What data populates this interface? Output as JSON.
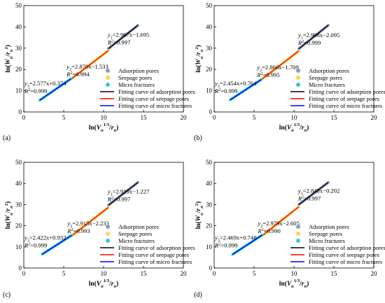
{
  "chart_data": [
    {
      "panel_label": "(a)",
      "type": "scatter",
      "xlabel": "ln(V_n^1/3/r_n)",
      "ylabel": "ln(W_n/r_n^2)",
      "xlim": [
        0,
        20
      ],
      "ylim": [
        0,
        50
      ],
      "xticks": [
        "0",
        "5",
        "10",
        "15",
        "20"
      ],
      "yticks": [
        "0",
        "10",
        "20",
        "30",
        "40",
        "50"
      ],
      "legend_position": "bottom-right",
      "legend": [
        "Adsorption pores",
        "Seepage pores",
        "Micro fractures",
        "Fitting curve of adsorption pores",
        "Fitting curve of seepage pores",
        "Fitting curve of micro fractures"
      ],
      "series": [
        {
          "kind": "adsorption",
          "x_range": [
            10.6,
            14.3
          ],
          "slope": 2.967,
          "intercept": -1.695,
          "eq": "y1=2.967x−1.695",
          "r2": "R²=0.997"
        },
        {
          "kind": "seepage",
          "x_range": [
            5.9,
            10.6
          ],
          "slope": 2.87,
          "intercept": -1.533,
          "eq": "y2=2.870x−1.533",
          "r2": "R²=0.994"
        },
        {
          "kind": "micro",
          "x_range": [
            2.0,
            5.9
          ],
          "slope": 2.577,
          "intercept": 0.374,
          "eq": "y3=2.577x+0.374",
          "r2": "R²=0.999"
        }
      ]
    },
    {
      "panel_label": "(b)",
      "type": "scatter",
      "xlabel": "ln(V_n^1/3/r_n)",
      "ylabel": "ln(W_n/r_n^2)",
      "xlim": [
        0,
        20
      ],
      "ylim": [
        0,
        50
      ],
      "xticks": [
        "0",
        "5",
        "10",
        "15",
        "20"
      ],
      "yticks": [
        "0",
        "10",
        "20",
        "30",
        "40",
        "50"
      ],
      "legend_position": "bottom-right",
      "legend": [
        "Adsorption pores",
        "Seepage pores",
        "Micro fractures",
        "Fitting curve of adsorption pores",
        "Fitting curve of seepage pores",
        "Fitting curve of micro fractures"
      ],
      "series": [
        {
          "kind": "adsorption",
          "x_range": [
            10.6,
            14.3
          ],
          "slope": 2.998,
          "intercept": -2.095,
          "eq": "y1=2.998x−2.095",
          "r2": "R²=0.999"
        },
        {
          "kind": "seepage",
          "x_range": [
            5.9,
            10.6
          ],
          "slope": 2.866,
          "intercept": -1.709,
          "eq": "y2=2.866x−1.709",
          "r2": "R²=0.995"
        },
        {
          "kind": "micro",
          "x_range": [
            2.0,
            5.9
          ],
          "slope": 2.454,
          "intercept": 0.764,
          "eq": "y3=2.454x+0.764",
          "r2": "R²=0.999"
        }
      ]
    },
    {
      "panel_label": "(c)",
      "type": "scatter",
      "xlabel": "ln(V_n^1/3/r_n)",
      "ylabel": "ln(W_n/r_n^2)",
      "xlim": [
        0,
        20
      ],
      "ylim": [
        0,
        50
      ],
      "xticks": [
        "0",
        "5",
        "10",
        "15",
        "20"
      ],
      "yticks": [
        "0",
        "10",
        "20",
        "30",
        "40",
        "50"
      ],
      "legend_position": "bottom-right",
      "legend": [
        "Adsorption pores",
        "Seepage pores",
        "Micro fractures",
        "Fitting curve of adsorption pores",
        "Fitting curve of seepage pores",
        "Fitting curve of micro fractures"
      ],
      "series": [
        {
          "kind": "adsorption",
          "x_range": [
            10.6,
            14.3
          ],
          "slope": 2.919,
          "intercept": -1.227,
          "eq": "y1=2.919x−1.227",
          "r2": "R²=0.997"
        },
        {
          "kind": "seepage",
          "x_range": [
            6.0,
            10.6
          ],
          "slope": 2.915,
          "intercept": -2.233,
          "eq": "y2=2.915x−2.233",
          "r2": "R²=0.993"
        },
        {
          "kind": "micro",
          "x_range": [
            2.3,
            6.0
          ],
          "slope": 2.422,
          "intercept": 0.932,
          "eq": "y3=2.422x+0.932",
          "r2": "R²=0.999"
        }
      ]
    },
    {
      "panel_label": "(d)",
      "type": "scatter",
      "xlabel": "ln(V_n^1/3/r_n)",
      "ylabel": "ln(W_n/r_n^2)",
      "xlim": [
        0,
        20
      ],
      "ylim": [
        0,
        50
      ],
      "xticks": [
        "0",
        "5",
        "10",
        "15",
        "20"
      ],
      "yticks": [
        "0",
        "10",
        "20",
        "30",
        "40",
        "50"
      ],
      "legend_position": "bottom-right",
      "legend": [
        "Adsorption pores",
        "Seepage pores",
        "Micro fractures",
        "Fitting curve of adsorption pores",
        "Fitting curve of seepage pores",
        "Fitting curve of micro fractures"
      ],
      "series": [
        {
          "kind": "adsorption",
          "x_range": [
            10.6,
            14.3
          ],
          "slope": 2.848,
          "intercept": -0.202,
          "eq": "y1=2.848x−0.202",
          "r2": "R²=0.997"
        },
        {
          "kind": "seepage",
          "x_range": [
            6.0,
            10.6
          ],
          "slope": 2.979,
          "intercept": -2.605,
          "eq": "y2=2.979x−2.605",
          "r2": "R²=0.990"
        },
        {
          "kind": "micro",
          "x_range": [
            2.3,
            6.0
          ],
          "slope": 2.469,
          "intercept": 0.748,
          "eq": "y3=2.469x+0.748",
          "r2": "R²=0.999"
        }
      ]
    }
  ],
  "colors": {
    "adsorption_points": "#8d9cc4",
    "seepage_points": "#ffd24d",
    "micro_points": "#33c9d8",
    "adsorption_line": "#000000",
    "seepage_line": "#ff0000",
    "micro_line": "#0000ff"
  }
}
